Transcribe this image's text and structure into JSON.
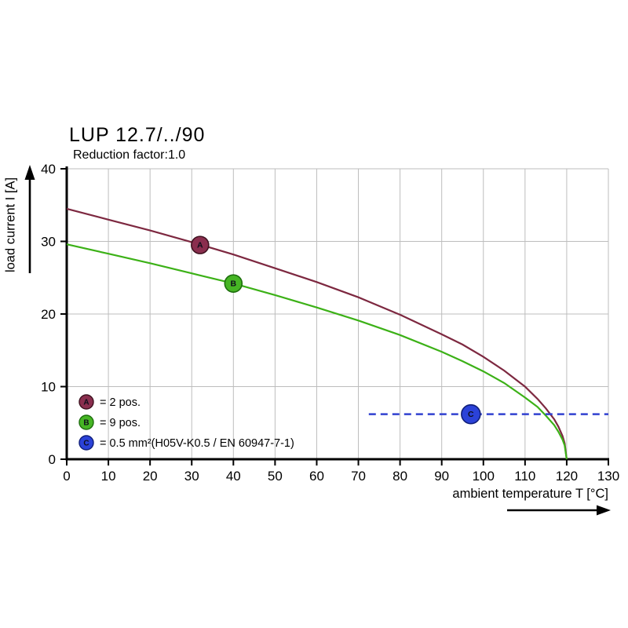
{
  "chart_data": {
    "type": "line",
    "title": "LUP 12.7/../90",
    "subtitle": "Reduction factor:1.0",
    "xlabel": "ambient temperature T [°C]",
    "ylabel": "load current I [A]",
    "xlim": [
      0,
      130
    ],
    "ylim": [
      0,
      40
    ],
    "xticks": [
      0,
      10,
      20,
      30,
      40,
      50,
      60,
      70,
      80,
      90,
      100,
      110,
      120,
      130
    ],
    "yticks": [
      0,
      10,
      20,
      30,
      40
    ],
    "grid": true,
    "grid_color": "#bdbdbd",
    "axis_color": "#000000",
    "legend_position": "inside-lower-left",
    "series": [
      {
        "name": "A",
        "legend_label": "= 2 pos.",
        "color": "#7d2840",
        "marker_fill": "#8a2e4e",
        "marker_stroke": "#3f1220",
        "marker_r": 11,
        "marker": {
          "x": 32,
          "y": 29.5
        },
        "points": [
          [
            0,
            34.5
          ],
          [
            10,
            33.0
          ],
          [
            20,
            31.5
          ],
          [
            30,
            29.9
          ],
          [
            40,
            28.2
          ],
          [
            50,
            26.3
          ],
          [
            60,
            24.4
          ],
          [
            70,
            22.3
          ],
          [
            80,
            19.9
          ],
          [
            90,
            17.2
          ],
          [
            95,
            15.8
          ],
          [
            100,
            14.1
          ],
          [
            105,
            12.2
          ],
          [
            110,
            10.0
          ],
          [
            113,
            8.3
          ],
          [
            115,
            7.0
          ],
          [
            117,
            5.5
          ],
          [
            118,
            4.5
          ],
          [
            119,
            3.2
          ],
          [
            119.5,
            2.2
          ],
          [
            120,
            0
          ]
        ]
      },
      {
        "name": "B",
        "legend_label": "= 9 pos.",
        "color": "#3cb117",
        "marker_fill": "#46b524",
        "marker_stroke": "#1d6e0d",
        "marker_r": 11,
        "marker": {
          "x": 40,
          "y": 24.2
        },
        "points": [
          [
            0,
            29.6
          ],
          [
            10,
            28.3
          ],
          [
            20,
            27.0
          ],
          [
            30,
            25.6
          ],
          [
            40,
            24.2
          ],
          [
            50,
            22.6
          ],
          [
            60,
            20.9
          ],
          [
            70,
            19.1
          ],
          [
            80,
            17.1
          ],
          [
            90,
            14.8
          ],
          [
            95,
            13.5
          ],
          [
            100,
            12.1
          ],
          [
            105,
            10.5
          ],
          [
            110,
            8.5
          ],
          [
            113,
            7.2
          ],
          [
            115,
            6.0
          ],
          [
            117,
            4.7
          ],
          [
            118,
            3.8
          ],
          [
            119,
            2.7
          ],
          [
            119.5,
            1.9
          ],
          [
            120,
            0
          ]
        ]
      },
      {
        "name": "C",
        "legend_label": "= 0.5 mm²(H05V-K0.5 / EN 60947-7-1)",
        "color": "#3141d0",
        "style": "dashed",
        "marker_fill": "#2b42d8",
        "marker_stroke": "#101f7a",
        "marker_r": 12,
        "marker": {
          "x": 97,
          "y": 6.2
        },
        "points": [
          [
            72.5,
            6.2
          ],
          [
            130,
            6.2
          ]
        ]
      }
    ]
  }
}
